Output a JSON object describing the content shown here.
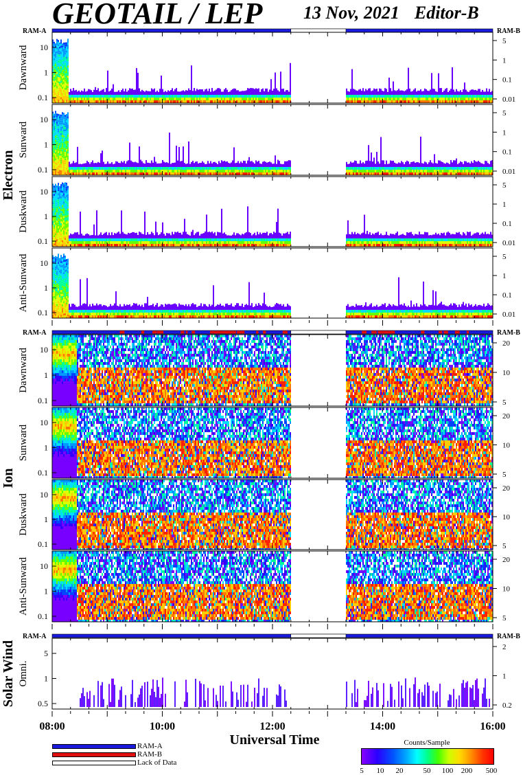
{
  "header": {
    "title": "GEOTAIL / LEP",
    "date": "13 Nov, 2021",
    "editor": "Editor-B"
  },
  "colors": {
    "ram_a": "#1a1adc",
    "ram_b": "#e01010",
    "lack_of_data": "#ffffff"
  },
  "legend": {
    "items": [
      {
        "label": "RAM-A",
        "color": "#1a1adc"
      },
      {
        "label": "RAM-B",
        "color": "#e01010"
      },
      {
        "label": "Lack of Data",
        "color": "#ffffff"
      }
    ]
  },
  "colorbar": {
    "title": "Counts/Sample",
    "ticks": [
      "5",
      "10",
      "20",
      "50",
      "100",
      "200",
      "500"
    ]
  },
  "chart_data": {
    "type": "heatmap",
    "xlabel": "Universal Time",
    "x_ticks": [
      "08:00",
      "10:00",
      "12:00",
      "14:00",
      "16:00"
    ],
    "xlim": [
      "08:00",
      "16:00"
    ],
    "data_gap": [
      "12:20",
      "13:20"
    ],
    "groups": [
      {
        "name": "Electron",
        "left_label": "RAM-A",
        "right_label": "RAM-B",
        "panels": [
          {
            "name": "Dawnward",
            "left_ticks": [
              "10",
              "1",
              "0.1"
            ],
            "right_ticks": [
              "5",
              "1",
              "0.1",
              "0.01"
            ]
          },
          {
            "name": "Sunward",
            "left_ticks": [
              "10",
              "1",
              "0.1"
            ],
            "right_ticks": [
              "5",
              "1",
              "0.1",
              "0.01"
            ]
          },
          {
            "name": "Duskward",
            "left_ticks": [
              "10",
              "1",
              "0.1"
            ],
            "right_ticks": [
              "5",
              "1",
              "0.1",
              "0.01"
            ]
          },
          {
            "name": "Anti-Sunward",
            "left_ticks": [
              "10",
              "1",
              "0.1"
            ],
            "right_ticks": [
              "5",
              "1",
              "0.1",
              "0.01"
            ]
          }
        ]
      },
      {
        "name": "Ion",
        "left_label": "RAM-A",
        "right_label": "RAM-B",
        "panels": [
          {
            "name": "Dawnward",
            "left_ticks": [
              "10",
              "1",
              "0.1"
            ],
            "right_ticks": [
              "20",
              "10",
              "5"
            ]
          },
          {
            "name": "Sunward",
            "left_ticks": [
              "10",
              "1",
              "0.1"
            ],
            "right_ticks": [
              "20",
              "10",
              "5"
            ]
          },
          {
            "name": "Duskward",
            "left_ticks": [
              "10",
              "1",
              "0.1"
            ],
            "right_ticks": [
              "20",
              "10",
              "5"
            ]
          },
          {
            "name": "Anti-Sunward",
            "left_ticks": [
              "10",
              "1",
              "0.1"
            ],
            "right_ticks": [
              "20",
              "10",
              "5"
            ]
          }
        ]
      },
      {
        "name": "Solar Wind",
        "left_label": "RAM-A",
        "right_label": "RAM-B",
        "panels": [
          {
            "name": "Omni.",
            "left_ticks": [
              "5",
              "1",
              "0.5"
            ],
            "right_ticks": [
              "2",
              "1",
              "0.2"
            ]
          }
        ]
      }
    ]
  }
}
